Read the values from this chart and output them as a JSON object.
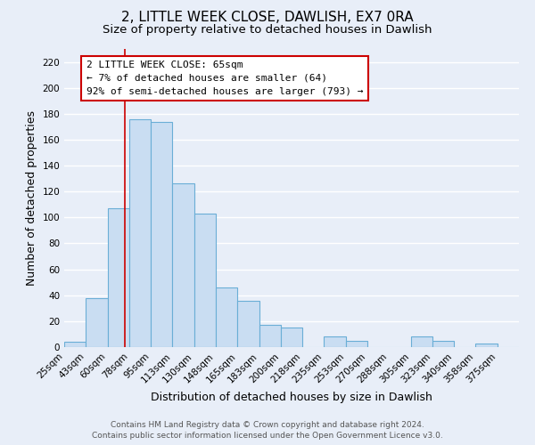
{
  "title": "2, LITTLE WEEK CLOSE, DAWLISH, EX7 0RA",
  "subtitle": "Size of property relative to detached houses in Dawlish",
  "xlabel": "Distribution of detached houses by size in Dawlish",
  "ylabel": "Number of detached properties",
  "bin_labels": [
    "25sqm",
    "43sqm",
    "60sqm",
    "78sqm",
    "95sqm",
    "113sqm",
    "130sqm",
    "148sqm",
    "165sqm",
    "183sqm",
    "200sqm",
    "218sqm",
    "235sqm",
    "253sqm",
    "270sqm",
    "288sqm",
    "305sqm",
    "323sqm",
    "340sqm",
    "358sqm",
    "375sqm"
  ],
  "bar_heights": [
    4,
    38,
    107,
    176,
    174,
    126,
    103,
    46,
    36,
    17,
    15,
    0,
    8,
    5,
    0,
    0,
    8,
    5,
    0,
    3,
    0
  ],
  "bar_color": "#c9ddf2",
  "bar_edge_color": "#6aaed6",
  "ylim": [
    0,
    230
  ],
  "yticks": [
    0,
    20,
    40,
    60,
    80,
    100,
    120,
    140,
    160,
    180,
    200,
    220
  ],
  "property_line_x": 65,
  "bin_edges": [
    16.0,
    33.5,
    51.0,
    68.5,
    86.0,
    103.5,
    121.0,
    138.5,
    156.0,
    173.5,
    191.0,
    208.5,
    226.0,
    243.5,
    261.0,
    278.5,
    296.0,
    313.5,
    331.0,
    348.5,
    366.0,
    383.5
  ],
  "annotation_title": "2 LITTLE WEEK CLOSE: 65sqm",
  "annotation_line1": "← 7% of detached houses are smaller (64)",
  "annotation_line2": "92% of semi-detached houses are larger (793) →",
  "annotation_box_color": "#ffffff",
  "annotation_border_color": "#cc0000",
  "vline_color": "#cc0000",
  "footer1": "Contains HM Land Registry data © Crown copyright and database right 2024.",
  "footer2": "Contains public sector information licensed under the Open Government Licence v3.0.",
  "background_color": "#e8eef8",
  "grid_color": "#ffffff",
  "title_fontsize": 11,
  "subtitle_fontsize": 9.5,
  "axis_label_fontsize": 9,
  "tick_fontsize": 7.5,
  "annotation_fontsize": 8,
  "footer_fontsize": 6.5
}
